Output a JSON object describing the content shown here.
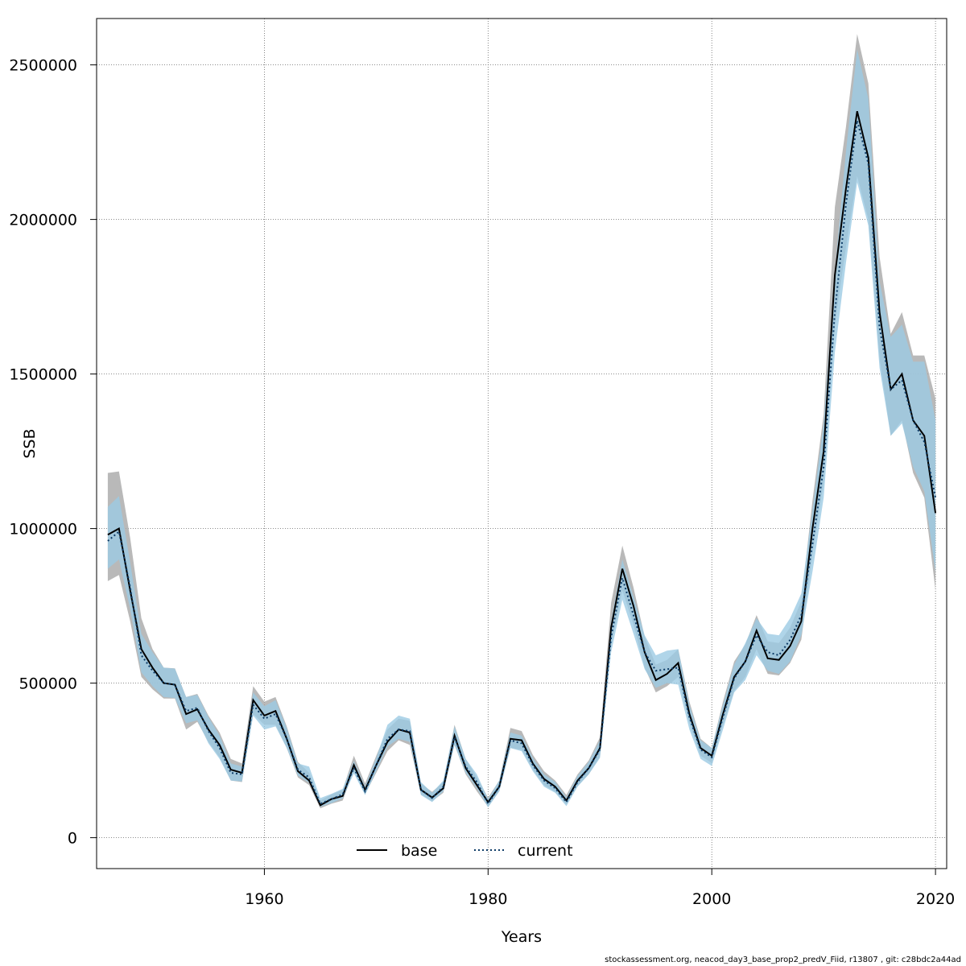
{
  "chart_data": {
    "type": "line",
    "xlabel": "Years",
    "ylabel": "SSB",
    "xlim": [
      1945,
      2021
    ],
    "ylim": [
      -100000,
      2650000
    ],
    "x_ticks": [
      1960,
      1980,
      2000,
      2020
    ],
    "x_tick_labels": [
      "1960",
      "1980",
      "2000",
      "2020"
    ],
    "y_ticks": [
      0,
      500000,
      1000000,
      1500000,
      2000000,
      2500000
    ],
    "y_tick_labels": [
      "0",
      "500000",
      "1000000",
      "1500000",
      "2000000",
      "2500000"
    ],
    "grid": true,
    "legend_position": "bottom-center",
    "x": [
      1946,
      1947,
      1948,
      1949,
      1950,
      1951,
      1952,
      1953,
      1954,
      1955,
      1956,
      1957,
      1958,
      1959,
      1960,
      1961,
      1962,
      1963,
      1964,
      1965,
      1966,
      1967,
      1968,
      1969,
      1970,
      1971,
      1972,
      1973,
      1974,
      1975,
      1976,
      1977,
      1978,
      1979,
      1980,
      1981,
      1982,
      1983,
      1984,
      1985,
      1986,
      1987,
      1988,
      1989,
      1990,
      1991,
      1992,
      1993,
      1994,
      1995,
      1996,
      1997,
      1998,
      1999,
      2000,
      2001,
      2002,
      2003,
      2004,
      2005,
      2006,
      2007,
      2008,
      2009,
      2010,
      2011,
      2012,
      2013,
      2014,
      2015,
      2016,
      2017,
      2018,
      2019,
      2020
    ],
    "series": [
      {
        "name": "base",
        "line_style": "solid",
        "color": "#000000",
        "band_color": "#a8a8a8",
        "values": [
          980000,
          1000000,
          800000,
          610000,
          550000,
          500000,
          495000,
          400000,
          415000,
          350000,
          300000,
          220000,
          210000,
          445000,
          395000,
          410000,
          320000,
          215000,
          185000,
          105000,
          125000,
          135000,
          235000,
          155000,
          235000,
          310000,
          350000,
          340000,
          155000,
          130000,
          160000,
          330000,
          225000,
          170000,
          115000,
          165000,
          320000,
          315000,
          240000,
          190000,
          165000,
          120000,
          185000,
          225000,
          290000,
          680000,
          870000,
          750000,
          600000,
          510000,
          530000,
          565000,
          400000,
          290000,
          265000,
          400000,
          520000,
          570000,
          670000,
          580000,
          575000,
          620000,
          700000,
          1000000,
          1250000,
          1820000,
          2100000,
          2350000,
          2200000,
          1700000,
          1450000,
          1500000,
          1350000,
          1300000,
          1050000
        ],
        "lower": [
          830000,
          850000,
          700000,
          520000,
          480000,
          450000,
          450000,
          350000,
          375000,
          310000,
          260000,
          185000,
          180000,
          400000,
          365000,
          365000,
          290000,
          195000,
          170000,
          95000,
          110000,
          120000,
          215000,
          140000,
          210000,
          280000,
          315000,
          300000,
          140000,
          118000,
          145000,
          300000,
          205000,
          150000,
          100000,
          150000,
          290000,
          285000,
          220000,
          170000,
          148000,
          108000,
          168000,
          205000,
          262000,
          620000,
          800000,
          690000,
          550000,
          470000,
          490000,
          520000,
          370000,
          265000,
          242000,
          365000,
          475000,
          520000,
          610000,
          530000,
          525000,
          565000,
          640000,
          920000,
          1150000,
          1660000,
          1910000,
          2140000,
          2000000,
          1550000,
          1300000,
          1350000,
          1180000,
          1100000,
          800000
        ],
        "upper": [
          1180000,
          1185000,
          970000,
          710000,
          610000,
          550000,
          548000,
          455000,
          465000,
          395000,
          340000,
          255000,
          240000,
          490000,
          440000,
          455000,
          360000,
          245000,
          210000,
          120000,
          140000,
          155000,
          265000,
          175000,
          265000,
          350000,
          385000,
          378000,
          175000,
          148000,
          180000,
          365000,
          255000,
          195000,
          130000,
          185000,
          355000,
          345000,
          268000,
          215000,
          185000,
          138000,
          205000,
          250000,
          325000,
          760000,
          945000,
          810000,
          650000,
          560000,
          575000,
          610000,
          440000,
          320000,
          290000,
          440000,
          570000,
          625000,
          720000,
          635000,
          630000,
          680000,
          765000,
          1090000,
          1370000,
          2040000,
          2300000,
          2600000,
          2440000,
          1880000,
          1630000,
          1700000,
          1560000,
          1560000,
          1420000
        ]
      },
      {
        "name": "current",
        "line_style": "dotted",
        "color": "#0d3b66",
        "band_color": "#9ccbe4",
        "values": [
          960000,
          990000,
          810000,
          590000,
          540000,
          500000,
          495000,
          410000,
          420000,
          345000,
          290000,
          210000,
          205000,
          430000,
          385000,
          400000,
          320000,
          220000,
          195000,
          110000,
          125000,
          140000,
          225000,
          150000,
          235000,
          320000,
          350000,
          345000,
          155000,
          128000,
          165000,
          325000,
          230000,
          180000,
          110000,
          165000,
          315000,
          305000,
          235000,
          185000,
          160000,
          115000,
          180000,
          225000,
          285000,
          650000,
          840000,
          720000,
          600000,
          540000,
          545000,
          550000,
          390000,
          285000,
          260000,
          390000,
          515000,
          570000,
          655000,
          600000,
          590000,
          640000,
          720000,
          950000,
          1200000,
          1700000,
          2050000,
          2320000,
          2180000,
          1650000,
          1450000,
          1480000,
          1350000,
          1280000,
          1100000
        ],
        "lower": [
          870000,
          900000,
          740000,
          535000,
          490000,
          455000,
          452000,
          370000,
          380000,
          305000,
          255000,
          185000,
          182000,
          395000,
          350000,
          360000,
          290000,
          200000,
          178000,
          100000,
          112000,
          127000,
          208000,
          138000,
          215000,
          295000,
          320000,
          310000,
          138000,
          115000,
          150000,
          300000,
          210000,
          160000,
          98000,
          150000,
          290000,
          280000,
          215000,
          165000,
          145000,
          102000,
          165000,
          205000,
          258000,
          600000,
          770000,
          660000,
          545000,
          485000,
          500000,
          495000,
          350000,
          255000,
          232000,
          350000,
          470000,
          510000,
          590000,
          540000,
          530000,
          570000,
          655000,
          860000,
          1100000,
          1570000,
          1860000,
          2120000,
          1980000,
          1520000,
          1300000,
          1340000,
          1200000,
          1120000,
          860000
        ],
        "upper": [
          1070000,
          1105000,
          890000,
          660000,
          600000,
          550000,
          547000,
          455000,
          462000,
          390000,
          330000,
          240000,
          230000,
          470000,
          425000,
          445000,
          355000,
          240000,
          230000,
          128000,
          142000,
          158000,
          248000,
          166000,
          258000,
          365000,
          395000,
          385000,
          180000,
          145000,
          185000,
          360000,
          255000,
          205000,
          125000,
          185000,
          340000,
          330000,
          258000,
          205000,
          180000,
          130000,
          200000,
          245000,
          315000,
          700000,
          900000,
          780000,
          655000,
          590000,
          605000,
          610000,
          430000,
          315000,
          290000,
          430000,
          560000,
          630000,
          710000,
          660000,
          655000,
          710000,
          790000,
          1060000,
          1340000,
          1830000,
          2220000,
          2550000,
          2390000,
          1800000,
          1620000,
          1660000,
          1540000,
          1540000,
          1350000
        ]
      }
    ]
  },
  "footer_text": "stockassessment.org, neacod_day3_base_prop2_predV_Fiid, r13807 , git: c28bdc2a44ad"
}
